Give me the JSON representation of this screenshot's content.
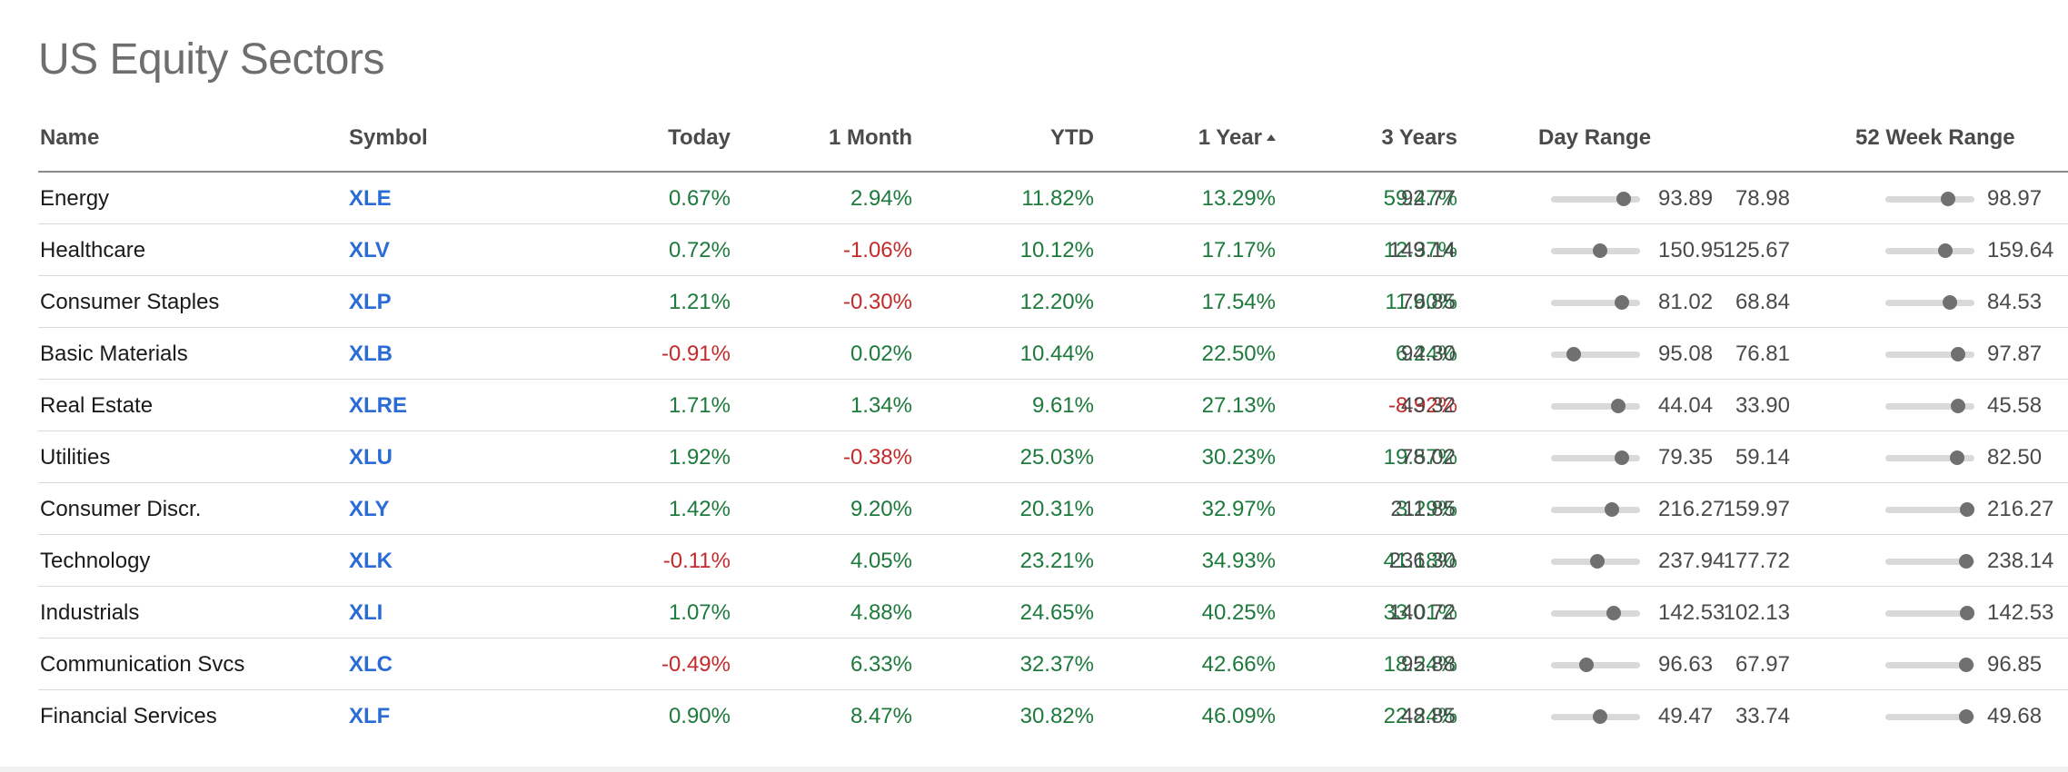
{
  "title": "US Equity Sectors",
  "columns": {
    "name": "Name",
    "symbol": "Symbol",
    "today": "Today",
    "month": "1 Month",
    "ytd": "YTD",
    "year": "1 Year",
    "years3": "3 Years",
    "day_range": "Day Range",
    "week52_range": "52 Week Range"
  },
  "sort": {
    "column": "1 Year",
    "direction": "ascending"
  },
  "colors": {
    "positive": "#1d7a3c",
    "negative": "#c42a2a",
    "link": "#2a6bd6"
  },
  "rows": [
    {
      "name": "Energy",
      "symbol": "XLE",
      "today": "0.67%",
      "month": "2.94%",
      "ytd": "11.82%",
      "year": "13.29%",
      "years3": "59.47%",
      "day_low": "92.77",
      "day_high": "93.89",
      "day_pos": 0.82,
      "wk_low": "78.98",
      "wk_high": "98.97",
      "wk_pos": 0.7
    },
    {
      "name": "Healthcare",
      "symbol": "XLV",
      "today": "0.72%",
      "month": "-1.06%",
      "ytd": "10.12%",
      "year": "17.17%",
      "years3": "12.37%",
      "day_low": "149.14",
      "day_high": "150.95",
      "day_pos": 0.55,
      "wk_low": "125.67",
      "wk_high": "159.64",
      "wk_pos": 0.67
    },
    {
      "name": "Consumer Staples",
      "symbol": "XLP",
      "today": "1.21%",
      "month": "-0.30%",
      "ytd": "12.20%",
      "year": "17.54%",
      "years3": "11.60%",
      "day_low": "79.85",
      "day_high": "81.02",
      "day_pos": 0.8,
      "wk_low": "68.84",
      "wk_high": "84.53",
      "wk_pos": 0.72
    },
    {
      "name": "Basic Materials",
      "symbol": "XLB",
      "today": "-0.91%",
      "month": "0.02%",
      "ytd": "10.44%",
      "year": "22.50%",
      "years3": "6.24%",
      "day_low": "94.30",
      "day_high": "95.08",
      "day_pos": 0.25,
      "wk_low": "76.81",
      "wk_high": "97.87",
      "wk_pos": 0.82
    },
    {
      "name": "Real Estate",
      "symbol": "XLRE",
      "today": "1.71%",
      "month": "1.34%",
      "ytd": "9.61%",
      "year": "27.13%",
      "years3": "-8.92%",
      "day_low": "43.32",
      "day_high": "44.04",
      "day_pos": 0.75,
      "wk_low": "33.90",
      "wk_high": "45.58",
      "wk_pos": 0.82
    },
    {
      "name": "Utilities",
      "symbol": "XLU",
      "today": "1.92%",
      "month": "-0.38%",
      "ytd": "25.03%",
      "year": "30.23%",
      "years3": "19.57%",
      "day_low": "78.02",
      "day_high": "79.35",
      "day_pos": 0.8,
      "wk_low": "59.14",
      "wk_high": "82.50",
      "wk_pos": 0.81
    },
    {
      "name": "Consumer Discr.",
      "symbol": "XLY",
      "today": "1.42%",
      "month": "9.20%",
      "ytd": "20.31%",
      "year": "32.97%",
      "years3": "3.29%",
      "day_low": "211.85",
      "day_high": "216.27",
      "day_pos": 0.68,
      "wk_low": "159.97",
      "wk_high": "216.27",
      "wk_pos": 0.92
    },
    {
      "name": "Technology",
      "symbol": "XLK",
      "today": "-0.11%",
      "month": "4.05%",
      "ytd": "23.21%",
      "year": "34.93%",
      "years3": "41.18%",
      "day_low": "236.30",
      "day_high": "237.94",
      "day_pos": 0.52,
      "wk_low": "177.72",
      "wk_high": "238.14",
      "wk_pos": 0.91
    },
    {
      "name": "Industrials",
      "symbol": "XLI",
      "today": "1.07%",
      "month": "4.88%",
      "ytd": "24.65%",
      "year": "40.25%",
      "years3": "33.01%",
      "day_low": "140.72",
      "day_high": "142.53",
      "day_pos": 0.7,
      "wk_low": "102.13",
      "wk_high": "142.53",
      "wk_pos": 0.92
    },
    {
      "name": "Communication Svcs",
      "symbol": "XLC",
      "today": "-0.49%",
      "month": "6.33%",
      "ytd": "32.37%",
      "year": "42.66%",
      "years3": "18.24%",
      "day_low": "95.88",
      "day_high": "96.63",
      "day_pos": 0.4,
      "wk_low": "67.97",
      "wk_high": "96.85",
      "wk_pos": 0.91
    },
    {
      "name": "Financial Services",
      "symbol": "XLF",
      "today": "0.90%",
      "month": "8.47%",
      "ytd": "30.82%",
      "year": "46.09%",
      "years3": "22.24%",
      "day_low": "48.85",
      "day_high": "49.47",
      "day_pos": 0.55,
      "wk_low": "33.74",
      "wk_high": "49.68",
      "wk_pos": 0.91
    }
  ]
}
